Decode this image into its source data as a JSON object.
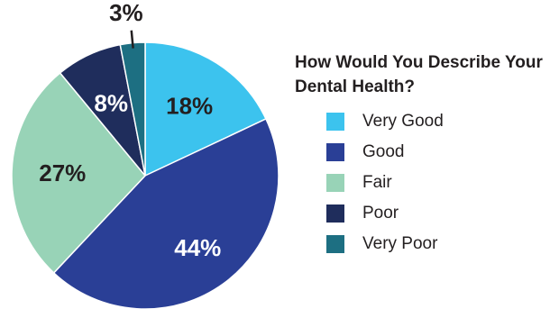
{
  "chart_data": {
    "type": "pie",
    "title": "How Would You Describe Your Dental Health?",
    "categories": [
      "Very Good",
      "Good",
      "Fair",
      "Poor",
      "Very Poor"
    ],
    "values": [
      18,
      44,
      27,
      8,
      3
    ],
    "labels": [
      "18%",
      "44%",
      "27%",
      "8%",
      "3%"
    ],
    "colors": [
      "#3cc3ee",
      "#2a3f96",
      "#98d3b7",
      "#1f2d5c",
      "#1d6f82"
    ],
    "label_colors": [
      "#231f20",
      "#ffffff",
      "#231f20",
      "#ffffff",
      "#231f20"
    ],
    "legend_position": "right"
  },
  "legend": {
    "title": "How Would You Describe Your Dental Health?",
    "items": [
      {
        "label": "Very Good",
        "color": "#3cc3ee"
      },
      {
        "label": "Good",
        "color": "#2a3f96"
      },
      {
        "label": "Fair",
        "color": "#98d3b7"
      },
      {
        "label": "Poor",
        "color": "#1f2d5c"
      },
      {
        "label": "Very Poor",
        "color": "#1d6f82"
      }
    ]
  }
}
